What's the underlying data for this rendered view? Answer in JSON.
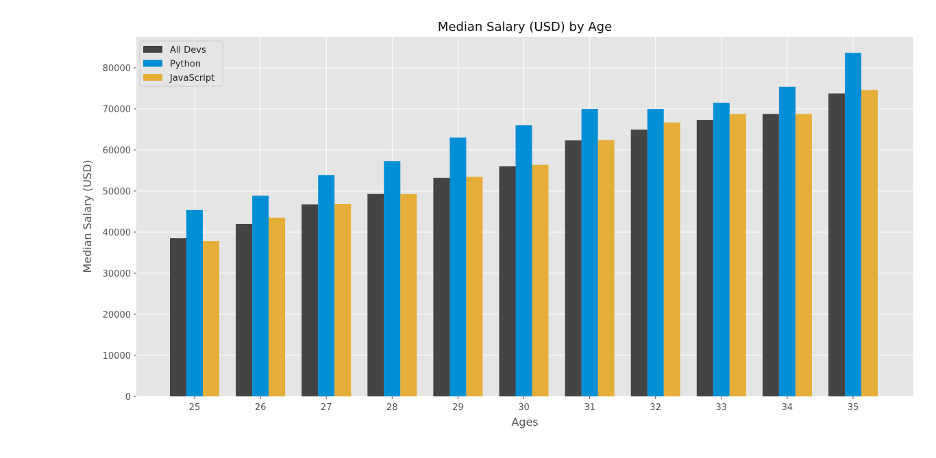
{
  "chart_data": {
    "type": "bar",
    "title": "Median Salary (USD) by Age",
    "xlabel": "Ages",
    "ylabel": "Median Salary (USD)",
    "categories": [
      "25",
      "26",
      "27",
      "28",
      "29",
      "30",
      "31",
      "32",
      "33",
      "34",
      "35"
    ],
    "series": [
      {
        "name": "All Devs",
        "color": "#444444",
        "values": [
          38496,
          42000,
          46752,
          49320,
          53200,
          56000,
          62316,
          64928,
          67317,
          68748,
          73752
        ]
      },
      {
        "name": "Python",
        "color": "#008fd5",
        "values": [
          45372,
          48876,
          53850,
          57287,
          63016,
          65998,
          70003,
          70000,
          71496,
          75370,
          83640
        ]
      },
      {
        "name": "JavaScript",
        "color": "#e5ae38",
        "values": [
          37810,
          43515,
          46823,
          49293,
          53437,
          56373,
          62375,
          66674,
          68745,
          68746,
          74583
        ]
      }
    ],
    "ylim": [
      0,
      87500
    ],
    "yticks": [
      0,
      10000,
      20000,
      30000,
      40000,
      50000,
      60000,
      70000,
      80000
    ],
    "grid": true,
    "legend_position": "top-left",
    "style": "ggplot"
  }
}
